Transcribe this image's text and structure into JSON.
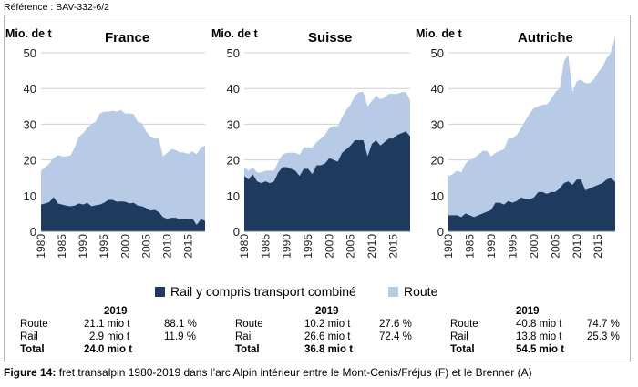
{
  "reference": "Référence : BAV-332-6/2",
  "caption": {
    "label": "Figure 14:",
    "text": " fret transalpin 1980-2019 dans l’arc Alpin intérieur entre le Mont-Cenis/Fréjus (F) et le Brenner (A)"
  },
  "legend": {
    "rail": "Rail y compris transport combiné",
    "road": "Route"
  },
  "colors": {
    "rail": "#1f3a5f",
    "road": "#b7cbe6",
    "grid": "#d0d0d0"
  },
  "chart_data": [
    {
      "type": "area",
      "stacked": true,
      "title": "France",
      "ylabel": "Mio. de t",
      "ylim": [
        0,
        50
      ],
      "yticks": [
        0,
        10,
        20,
        30,
        40,
        50
      ],
      "xticks": [
        "1980",
        "1985",
        "1990",
        "1995",
        "2000",
        "2005",
        "2010",
        "2015"
      ],
      "x": [
        1980,
        1981,
        1982,
        1983,
        1984,
        1985,
        1986,
        1987,
        1988,
        1989,
        1990,
        1991,
        1992,
        1993,
        1994,
        1995,
        1996,
        1997,
        1998,
        1999,
        2000,
        2001,
        2002,
        2003,
        2004,
        2005,
        2006,
        2007,
        2008,
        2009,
        2010,
        2011,
        2012,
        2013,
        2014,
        2015,
        2016,
        2017,
        2018,
        2019
      ],
      "series": [
        {
          "name": "Rail y compris transport combiné",
          "values": [
            7.5,
            7.8,
            8.2,
            9.6,
            7.8,
            7.5,
            7.2,
            7.0,
            7.2,
            7.8,
            7.5,
            8.0,
            7.0,
            7.3,
            7.5,
            8.0,
            8.8,
            8.8,
            8.3,
            8.4,
            8.3,
            7.8,
            8.0,
            7.2,
            7.0,
            6.5,
            5.8,
            6.0,
            5.4,
            4.0,
            3.5,
            3.8,
            3.8,
            3.4,
            3.6,
            3.5,
            3.6,
            1.8,
            3.4,
            2.9
          ]
        },
        {
          "name": "Route",
          "values": [
            9.5,
            10.2,
            10.8,
            11.0,
            13.5,
            13.5,
            13.8,
            14.2,
            16.3,
            18.7,
            20.0,
            21.0,
            23.0,
            23.4,
            25.5,
            25.5,
            24.7,
            25.0,
            25.2,
            25.6,
            24.7,
            25.2,
            24.8,
            23.5,
            23.3,
            21.5,
            20.7,
            20.0,
            20.6,
            17.0,
            18.5,
            19.2,
            19.0,
            18.7,
            18.5,
            18.2,
            18.8,
            19.8,
            20.1,
            21.1
          ]
        }
      ]
    },
    {
      "type": "area",
      "stacked": true,
      "title": "Suisse",
      "ylabel": "Mio. de t",
      "ylim": [
        0,
        50
      ],
      "yticks": [
        0,
        10,
        20,
        30,
        40,
        50
      ],
      "xticks": [
        "1980",
        "1985",
        "1990",
        "1995",
        "2000",
        "2005",
        "2010",
        "2015"
      ],
      "x": [
        1980,
        1981,
        1982,
        1983,
        1984,
        1985,
        1986,
        1987,
        1988,
        1989,
        1990,
        1991,
        1992,
        1993,
        1994,
        1995,
        1996,
        1997,
        1998,
        1999,
        2000,
        2001,
        2002,
        2003,
        2004,
        2005,
        2006,
        2007,
        2008,
        2009,
        2010,
        2011,
        2012,
        2013,
        2014,
        2015,
        2016,
        2017,
        2018,
        2019
      ],
      "series": [
        {
          "name": "Rail y compris transport combiné",
          "values": [
            15.5,
            14.5,
            16.0,
            14.0,
            13.5,
            14.0,
            13.5,
            14.0,
            16.5,
            18.0,
            18.0,
            17.5,
            17.0,
            15.5,
            17.5,
            17.5,
            16.0,
            18.5,
            18.5,
            19.0,
            20.5,
            20.0,
            19.5,
            22.0,
            23.0,
            24.0,
            25.5,
            25.5,
            25.5,
            21.0,
            24.5,
            25.5,
            24.0,
            25.0,
            26.0,
            26.0,
            27.0,
            27.5,
            28.0,
            26.6
          ]
        },
        {
          "name": "Route",
          "values": [
            2.5,
            2.5,
            2.0,
            2.5,
            3.0,
            3.0,
            3.5,
            3.0,
            3.0,
            3.5,
            4.0,
            4.5,
            5.0,
            6.0,
            6.0,
            6.0,
            7.5,
            6.5,
            7.5,
            8.0,
            8.5,
            9.5,
            10.0,
            10.0,
            11.0,
            11.5,
            12.5,
            13.5,
            13.5,
            14.0,
            12.0,
            12.5,
            13.0,
            12.5,
            12.5,
            12.5,
            11.5,
            11.5,
            11.0,
            10.2
          ]
        }
      ]
    },
    {
      "type": "area",
      "stacked": true,
      "title": "Autriche",
      "ylabel": "Mio. de t",
      "ylim": [
        0,
        50
      ],
      "yticks": [
        0,
        10,
        20,
        30,
        40,
        50
      ],
      "xticks": [
        "1980",
        "1985",
        "1990",
        "1995",
        "2000",
        "2005",
        "2010",
        "2015"
      ],
      "x": [
        1980,
        1981,
        1982,
        1983,
        1984,
        1985,
        1986,
        1987,
        1988,
        1989,
        1990,
        1991,
        1992,
        1993,
        1994,
        1995,
        1996,
        1997,
        1998,
        1999,
        2000,
        2001,
        2002,
        2003,
        2004,
        2005,
        2006,
        2007,
        2008,
        2009,
        2010,
        2011,
        2012,
        2013,
        2014,
        2015,
        2016,
        2017,
        2018,
        2019
      ],
      "series": [
        {
          "name": "Rail y compris transport combiné",
          "values": [
            4.5,
            4.5,
            4.5,
            4.0,
            5.0,
            4.5,
            4.0,
            4.5,
            5.0,
            5.5,
            6.0,
            8.0,
            8.0,
            7.5,
            8.5,
            8.0,
            8.5,
            9.5,
            9.0,
            9.0,
            9.5,
            11.0,
            11.0,
            10.5,
            11.0,
            11.0,
            12.0,
            13.5,
            14.0,
            13.0,
            14.5,
            14.5,
            11.5,
            12.0,
            12.5,
            13.0,
            13.5,
            14.5,
            15.0,
            13.8
          ]
        },
        {
          "name": "Route",
          "values": [
            11.0,
            11.5,
            12.5,
            12.5,
            14.0,
            15.5,
            16.5,
            17.0,
            17.5,
            17.0,
            15.0,
            14.0,
            14.5,
            15.5,
            17.5,
            18.0,
            18.5,
            19.5,
            22.0,
            24.0,
            25.0,
            24.0,
            24.5,
            25.0,
            26.0,
            28.0,
            28.0,
            34.0,
            35.5,
            26.0,
            27.5,
            28.0,
            30.0,
            29.5,
            30.0,
            31.5,
            32.5,
            34.0,
            35.0,
            40.8
          ]
        }
      ]
    }
  ],
  "stats": [
    {
      "year": "2019",
      "rows": [
        {
          "label": "Route",
          "value": "21.1 mio t",
          "pct": "88.1 %"
        },
        {
          "label": "Rail",
          "value": "2.9 mio t",
          "pct": "11.9 %"
        }
      ],
      "total_label": "Total",
      "total_value": "24.0 mio t"
    },
    {
      "year": "2019",
      "rows": [
        {
          "label": "Route",
          "value": "10.2 mio t",
          "pct": "27.6 %"
        },
        {
          "label": "Rail",
          "value": "26.6 mio t",
          "pct": "72.4 %"
        }
      ],
      "total_label": "Total",
      "total_value": "36.8 mio t"
    },
    {
      "year": "2019",
      "rows": [
        {
          "label": "Route",
          "value": "40.8 mio t",
          "pct": "74.7 %"
        },
        {
          "label": "Rail",
          "value": "13.8 mio t",
          "pct": "25.3 %"
        }
      ],
      "total_label": "Total",
      "total_value": "54.5 mio t"
    }
  ]
}
